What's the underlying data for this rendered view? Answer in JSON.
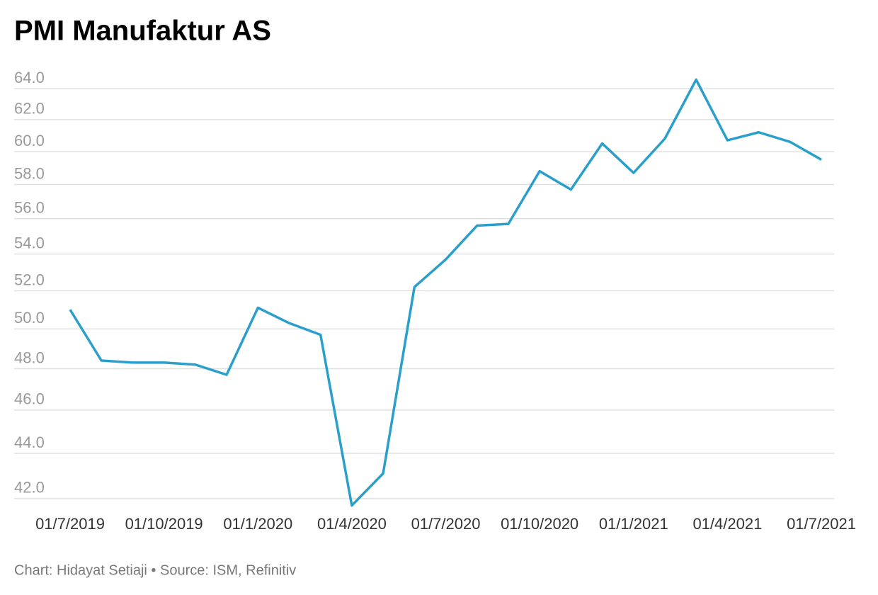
{
  "chart_data": {
    "type": "line",
    "title": "PMI Manufaktur AS",
    "footer": "Chart: Hidayat Setiaji • Source: ISM, Refinitiv",
    "categories": [
      "01/7/2019",
      null,
      null,
      "01/10/2019",
      null,
      null,
      "01/1/2020",
      null,
      null,
      "01/4/2020",
      null,
      null,
      "01/7/2020",
      null,
      null,
      "01/10/2020",
      null,
      null,
      "01/1/2021",
      null,
      null,
      "01/4/2021",
      null,
      null,
      "01/7/2021"
    ],
    "series": [
      {
        "name": "PMI Manufaktur AS",
        "color": "#2a9fcb",
        "values": [
          51.0,
          48.4,
          48.3,
          48.3,
          48.2,
          47.7,
          51.1,
          50.3,
          49.7,
          41.7,
          43.1,
          52.2,
          53.7,
          55.6,
          55.7,
          58.8,
          57.7,
          60.5,
          58.7,
          60.8,
          64.6,
          60.7,
          61.2,
          60.6,
          59.5
        ]
      }
    ],
    "log_scale": true,
    "ylim": [
      41.6,
      65
    ],
    "yticks": [
      {
        "value": 42,
        "label": "42.0"
      },
      {
        "value": 44,
        "label": "44.0"
      },
      {
        "value": 46,
        "label": "46.0"
      },
      {
        "value": 48,
        "label": "48.0"
      },
      {
        "value": 50,
        "label": "50.0"
      },
      {
        "value": 52,
        "label": "52.0"
      },
      {
        "value": 54,
        "label": "54.0"
      },
      {
        "value": 56,
        "label": "56.0"
      },
      {
        "value": 58,
        "label": "58.0"
      },
      {
        "value": 60,
        "label": "60.0"
      },
      {
        "value": 62,
        "label": "62.0"
      },
      {
        "value": 64,
        "label": "64.0"
      }
    ],
    "grid": true
  }
}
